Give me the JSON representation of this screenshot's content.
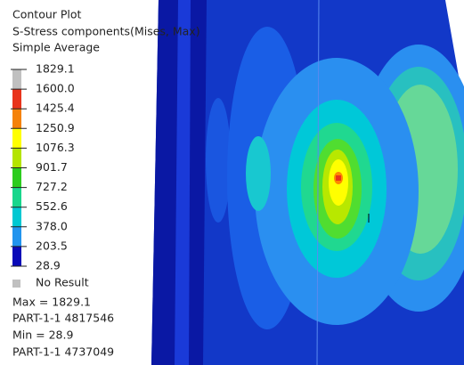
{
  "legend": {
    "title": "Contour Plot",
    "subtitle": "S-Stress components(Mises, Max)",
    "averaging": "Simple Average",
    "levels": [
      "1829.1",
      "1600.0",
      "1425.4",
      "1250.9",
      "1076.3",
      "901.7",
      "727.2",
      "552.6",
      "378.0",
      "203.5",
      "28.9"
    ],
    "band_colors": [
      "#c0c0c0",
      "#e8341c",
      "#f5820a",
      "#ffff00",
      "#b4e400",
      "#2ccc1e",
      "#18d68c",
      "#00c8d2",
      "#2294ee",
      "#0a0ab8"
    ],
    "no_result": "No Result",
    "no_result_color": "#c0c0c0"
  },
  "summary": {
    "max": "Max = 1829.1",
    "max_location": "PART-1-1 4817546",
    "min": "Min = 28.9",
    "min_location": "PART-1-1 4737049"
  }
}
